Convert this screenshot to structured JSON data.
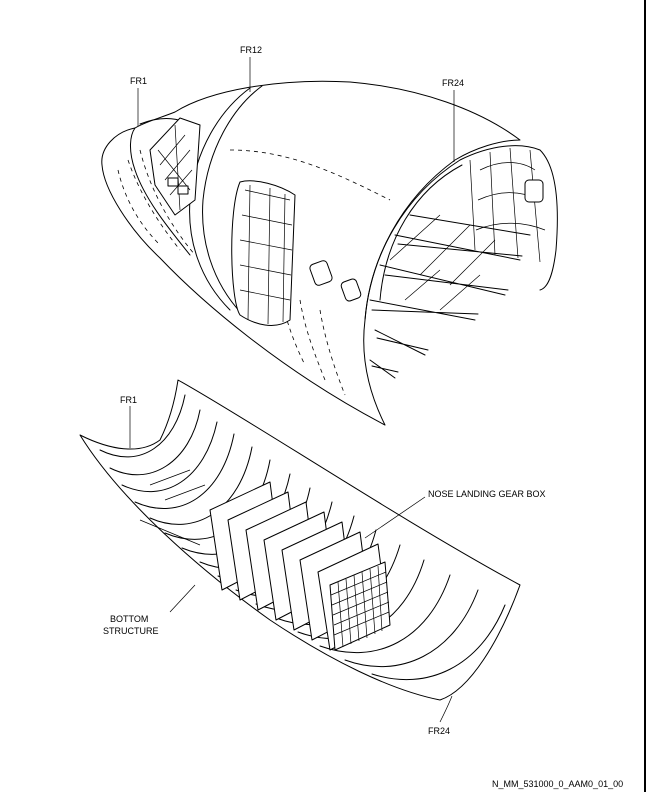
{
  "labels": {
    "fr1_top": "FR1",
    "fr12": "FR12",
    "fr24_top": "FR24",
    "fr1_bottom": "FR1",
    "nlg_box": "NOSE LANDING GEAR BOX",
    "bottom_structure_1": "BOTTOM",
    "bottom_structure_2": "STRUCTURE",
    "fr24_bottom": "FR24"
  },
  "figure_ref": "N_MM_531000_0_AAM0_01_00"
}
